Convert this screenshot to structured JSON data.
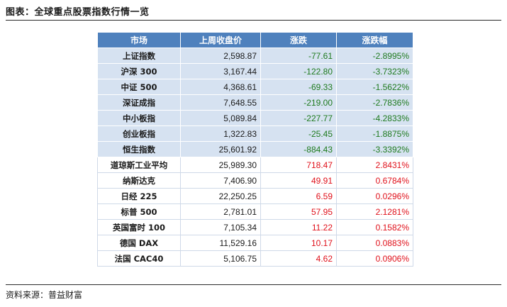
{
  "title": "图表：全球重点股票指数行情一览",
  "source": "资料来源：普益财富",
  "table": {
    "headers": [
      "市场",
      "上周收盘价",
      "涨跌",
      "涨跌幅"
    ],
    "rows": [
      {
        "market": "上证指数",
        "close": "2,598.87",
        "change": "-77.61",
        "pct": "-2.8995%",
        "dir": "neg"
      },
      {
        "market": "沪深 300",
        "close": "3,167.44",
        "change": "-122.80",
        "pct": "-3.7323%",
        "dir": "neg"
      },
      {
        "market": "中证 500",
        "close": "4,368.61",
        "change": "-69.33",
        "pct": "-1.5622%",
        "dir": "neg"
      },
      {
        "market": "深证成指",
        "close": "7,648.55",
        "change": "-219.00",
        "pct": "-2.7836%",
        "dir": "neg"
      },
      {
        "market": "中小板指",
        "close": "5,089.84",
        "change": "-227.77",
        "pct": "-4.2833%",
        "dir": "neg"
      },
      {
        "market": "创业板指",
        "close": "1,322.83",
        "change": "-25.45",
        "pct": "-1.8875%",
        "dir": "neg"
      },
      {
        "market": "恒生指数",
        "close": "25,601.92",
        "change": "-884.43",
        "pct": "-3.3392%",
        "dir": "neg"
      },
      {
        "market": "道琼斯工业平均",
        "close": "25,989.30",
        "change": "718.47",
        "pct": "2.8431%",
        "dir": "pos"
      },
      {
        "market": "纳斯达克",
        "close": "7,406.90",
        "change": "49.91",
        "pct": "0.6784%",
        "dir": "pos"
      },
      {
        "market": "日经 225",
        "close": "22,250.25",
        "change": "6.59",
        "pct": "0.0296%",
        "dir": "pos"
      },
      {
        "market": "标普 500",
        "close": "2,781.01",
        "change": "57.95",
        "pct": "2.1281%",
        "dir": "pos"
      },
      {
        "market": "英国富时 100",
        "close": "7,105.34",
        "change": "11.22",
        "pct": "0.1582%",
        "dir": "pos"
      },
      {
        "market": "德国 DAX",
        "close": "11,529.16",
        "change": "10.17",
        "pct": "0.0883%",
        "dir": "pos"
      },
      {
        "market": "法国 CAC40",
        "close": "5,106.75",
        "change": "4.62",
        "pct": "0.0906%",
        "dir": "pos"
      }
    ]
  },
  "colors": {
    "header_bg": "#4f81bd",
    "row_shade": "#d6e2f1",
    "negative": "#1e7a1e",
    "positive": "#e0101a"
  }
}
